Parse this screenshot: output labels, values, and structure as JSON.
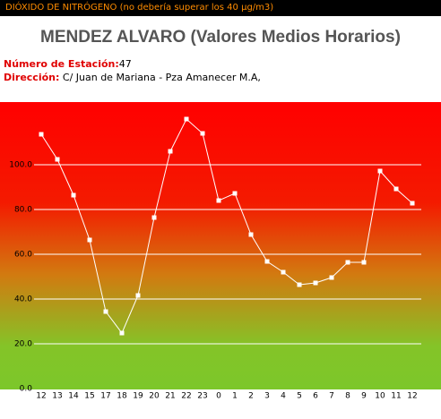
{
  "header": {
    "notice": "DIÓXIDO DE NITRÓGENO (no debería superar los 40 µg/m3)"
  },
  "station": {
    "number_label": "Número de Estación:",
    "number": "47",
    "address_label": "Dirección:",
    "address": "C/ Juan de Mariana - Pza Amanecer M.A,"
  },
  "chart_data": {
    "type": "line",
    "title": "MENDEZ ALVARO (Valores Medios Horarios)",
    "categories": [
      "12",
      "13",
      "14",
      "15",
      "17",
      "18",
      "19",
      "20",
      "21",
      "22",
      "23",
      "0",
      "1",
      "2",
      "3",
      "4",
      "5",
      "6",
      "7",
      "8",
      "9",
      "10",
      "11",
      "12"
    ],
    "values": [
      113.6,
      102.4,
      86.4,
      66.4,
      34.4,
      24.8,
      41.6,
      76.4,
      106,
      120.4,
      114,
      84,
      87.2,
      68.8,
      56.8,
      52,
      46.4,
      47.2,
      49.6,
      56.4,
      56.4,
      97.2,
      89.2,
      82.8
    ],
    "color": "#ffffff",
    "ylim": [
      0,
      128
    ],
    "yticks": [
      {
        "value": 0,
        "label": "0.0"
      },
      {
        "value": 20,
        "label": "20.0"
      },
      {
        "value": 40,
        "label": "40.0"
      },
      {
        "value": 60,
        "label": "60.0"
      },
      {
        "value": 80,
        "label": "80.0"
      },
      {
        "value": 100,
        "label": "100.0"
      }
    ],
    "grid": true
  }
}
